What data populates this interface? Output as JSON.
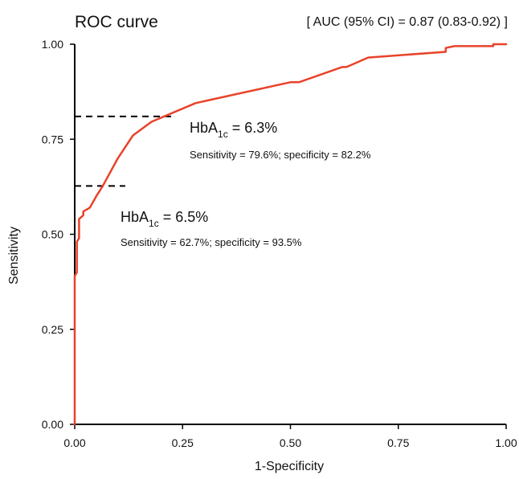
{
  "chart_data": {
    "type": "line",
    "title": "ROC curve",
    "subtitle": "[ AUC (95% CI) = 0.87 (0.83-0.92) ]",
    "xlabel": "1-Specificity",
    "ylabel": "Sensitivity",
    "xlim": [
      0,
      1
    ],
    "ylim": [
      0,
      1
    ],
    "xticks": [
      "0.00",
      "0.25",
      "0.50",
      "0.75",
      "1.00"
    ],
    "yticks": [
      "0.00",
      "0.25",
      "0.50",
      "0.75",
      "1.00"
    ],
    "line_color": "#e8432a",
    "series": [
      {
        "x": [
          0,
          0,
          0.005,
          0.005,
          0.01,
          0.01,
          0.02,
          0.02,
          0.035,
          0.05,
          0.065,
          0.1,
          0.135,
          0.178,
          0.28,
          0.5,
          0.52,
          0.62,
          0.63,
          0.68,
          0.86,
          0.86,
          0.88,
          0.97,
          0.97,
          1.0
        ],
        "y": [
          0,
          0.39,
          0.4,
          0.48,
          0.49,
          0.54,
          0.55,
          0.56,
          0.57,
          0.6,
          0.627,
          0.7,
          0.76,
          0.796,
          0.845,
          0.9,
          0.9,
          0.94,
          0.94,
          0.965,
          0.98,
          0.99,
          0.995,
          0.995,
          1.0,
          1.0
        ]
      }
    ],
    "cutoffs": [
      {
        "marker": "HbA",
        "sub": "1c",
        "value": " = 6.3%",
        "detail": "Sensitivity = 79.6%; specificity = 82.2%",
        "x": 0.178,
        "y": 0.81
      },
      {
        "marker": "HbA",
        "sub": "1c",
        "value": " = 6.5%",
        "detail": "Sensitivity = 62.7%; specificity = 93.5%",
        "x": 0.065,
        "y": 0.627
      }
    ]
  }
}
